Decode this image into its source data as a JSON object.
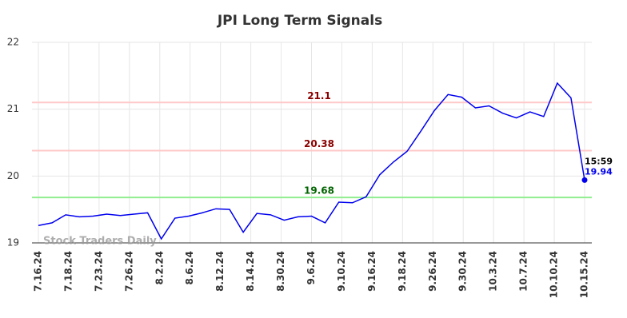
{
  "chart_data": {
    "type": "line",
    "title": "JPI Long Term Signals",
    "x": [
      0,
      1,
      2,
      3,
      4,
      5,
      6,
      7,
      8,
      9,
      10,
      11,
      12,
      13,
      14,
      15,
      16,
      17,
      18,
      19,
      20,
      21,
      22,
      23,
      24,
      25,
      26,
      27,
      28,
      29,
      30,
      31,
      32,
      33,
      34,
      35,
      36,
      37,
      38,
      39,
      40
    ],
    "series": [
      {
        "color": "#0000ee",
        "values": [
          19.26,
          19.3,
          19.42,
          19.39,
          19.4,
          19.43,
          19.41,
          19.43,
          19.45,
          19.06,
          19.37,
          19.4,
          19.45,
          19.51,
          19.5,
          19.16,
          19.44,
          19.42,
          19.34,
          19.39,
          19.4,
          19.3,
          19.61,
          19.6,
          19.69,
          20.02,
          20.21,
          20.37,
          20.67,
          20.98,
          21.22,
          21.18,
          21.02,
          21.05,
          20.94,
          20.87,
          20.96,
          20.89,
          21.39,
          21.17,
          19.94
        ]
      }
    ],
    "xlim": [
      0,
      40
    ],
    "xticks": [
      {
        "value": 0,
        "label": "7.16.24"
      },
      {
        "value": 2.222,
        "label": "7.18.24"
      },
      {
        "value": 4.444,
        "label": "7.23.24"
      },
      {
        "value": 6.667,
        "label": "7.26.24"
      },
      {
        "value": 8.889,
        "label": "8.2.24"
      },
      {
        "value": 11.111,
        "label": "8.6.24"
      },
      {
        "value": 13.333,
        "label": "8.12.24"
      },
      {
        "value": 15.556,
        "label": "8.14.24"
      },
      {
        "value": 17.778,
        "label": "8.30.24"
      },
      {
        "value": 20,
        "label": "9.6.24"
      },
      {
        "value": 22.222,
        "label": "9.10.24"
      },
      {
        "value": 24.444,
        "label": "9.16.24"
      },
      {
        "value": 26.667,
        "label": "9.18.24"
      },
      {
        "value": 28.889,
        "label": "9.26.24"
      },
      {
        "value": 31.111,
        "label": "9.30.24"
      },
      {
        "value": 33.333,
        "label": "10.3.24"
      },
      {
        "value": 35.556,
        "label": "10.7.24"
      },
      {
        "value": 37.778,
        "label": "10.10.24"
      },
      {
        "value": 40,
        "label": "10.15.24"
      }
    ],
    "ylim": [
      19,
      22
    ],
    "yticks": [
      19,
      20,
      21,
      22
    ],
    "grid": true,
    "hlines": [
      {
        "value": 21.1,
        "color": "#ffc8c8",
        "label_color": "#8b0000"
      },
      {
        "value": 20.38,
        "color": "#ffc8c8",
        "label_color": "#8b0000"
      },
      {
        "value": 19.68,
        "color": "#90ee90",
        "label_color": "#006400"
      }
    ],
    "last_time": "15:59",
    "watermark": "Stock Traders Daily"
  }
}
